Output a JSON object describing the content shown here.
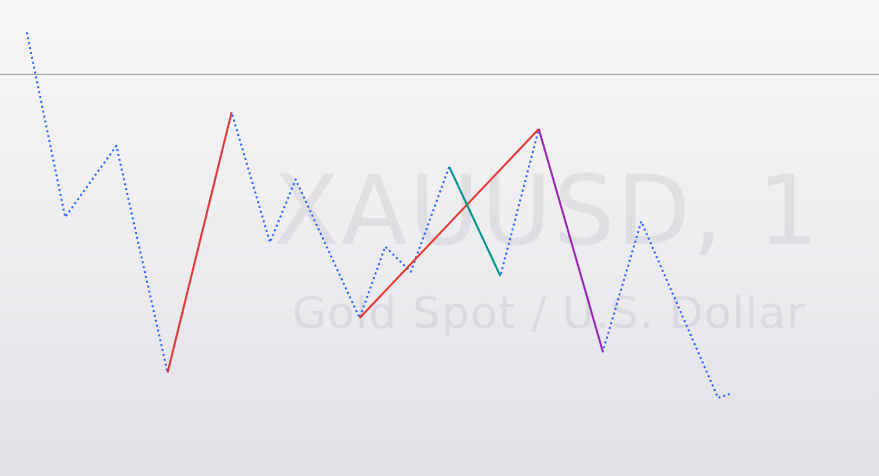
{
  "watermark": {
    "symbol": "XAUUSD, 1",
    "description": "Gold Spot / U.S. Dollar"
  },
  "chart_data": {
    "type": "line",
    "xlabel": "",
    "ylabel": "",
    "grid": false,
    "legend": "none",
    "ylim": [
      0,
      100
    ],
    "reference_line": {
      "y": 88
    },
    "series": [
      {
        "style": "dotted",
        "color": "#2962ff",
        "points": [
          [
            1,
            98
          ],
          [
            4,
            54
          ],
          [
            8,
            71
          ],
          [
            12,
            17
          ],
          [
            17,
            79
          ],
          [
            20,
            48
          ],
          [
            22,
            63
          ],
          [
            27,
            30
          ],
          [
            29,
            47
          ],
          [
            31,
            41
          ],
          [
            34,
            66
          ],
          [
            38,
            40
          ],
          [
            41,
            75
          ],
          [
            46,
            22
          ],
          [
            49,
            53
          ],
          [
            55,
            11
          ],
          [
            56,
            12
          ]
        ]
      },
      {
        "style": "solid",
        "color": "#e53935",
        "points": [
          [
            12,
            17
          ],
          [
            17,
            79
          ]
        ]
      },
      {
        "style": "solid",
        "color": "#e53935",
        "points": [
          [
            27,
            30
          ],
          [
            41,
            75
          ]
        ]
      },
      {
        "style": "solid",
        "color": "#009688",
        "points": [
          [
            34,
            66
          ],
          [
            38,
            40
          ]
        ]
      },
      {
        "style": "solid",
        "color": "#9c27b0",
        "points": [
          [
            41,
            75
          ],
          [
            46,
            22
          ]
        ]
      }
    ]
  }
}
